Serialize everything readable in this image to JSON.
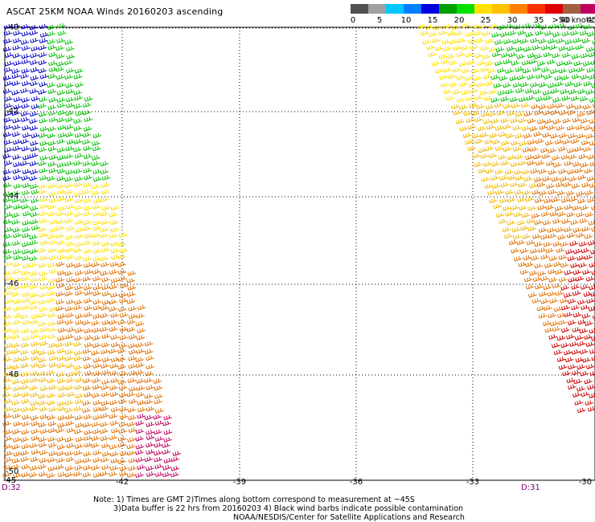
{
  "header": {
    "title": "ASCAT 25KM NOAA Winds 20160203 ascending"
  },
  "legend": {
    "unit_label": ">50 knots",
    "labels": [
      "0",
      "5",
      "10",
      "15",
      "20",
      "25",
      "30",
      "35",
      "40",
      "45"
    ],
    "colors": [
      "#505050",
      "#a0a0a0",
      "#00c8ff",
      "#0080ff",
      "#0000e0",
      "#00a000",
      "#00e000",
      "#ffe000",
      "#ffc000",
      "#ff8000",
      "#ff3000",
      "#e00000",
      "#a06040",
      "#c00060",
      "#8000c0"
    ]
  },
  "map": {
    "lat_labels": [
      "-40",
      "-42",
      "-44",
      "-46",
      "-48",
      "-50"
    ],
    "lon_labels": [
      "-45",
      "-42",
      "-39",
      "-36",
      "-33",
      "-30"
    ],
    "time_labels": {
      "left": "D:32",
      "right": "D:31"
    }
  },
  "notes": {
    "line1": "Note: 1) Times are GMT 2)Times along bottom correspond to measurement at ~45S",
    "line2": "3)Data buffer is 22 hrs from 20160203 4) Black wind barbs indicate possible contamination",
    "line3": "NOAA/NESDIS/Center for Satellite Applications and Research"
  },
  "colors": {
    "blue": "#0000c8",
    "green": "#00c000",
    "yellow": "#ffe000",
    "gold": "#f0b800",
    "orange": "#e07000",
    "red": "#d00000",
    "magenta": "#c00060",
    "time_label": "#800080"
  }
}
